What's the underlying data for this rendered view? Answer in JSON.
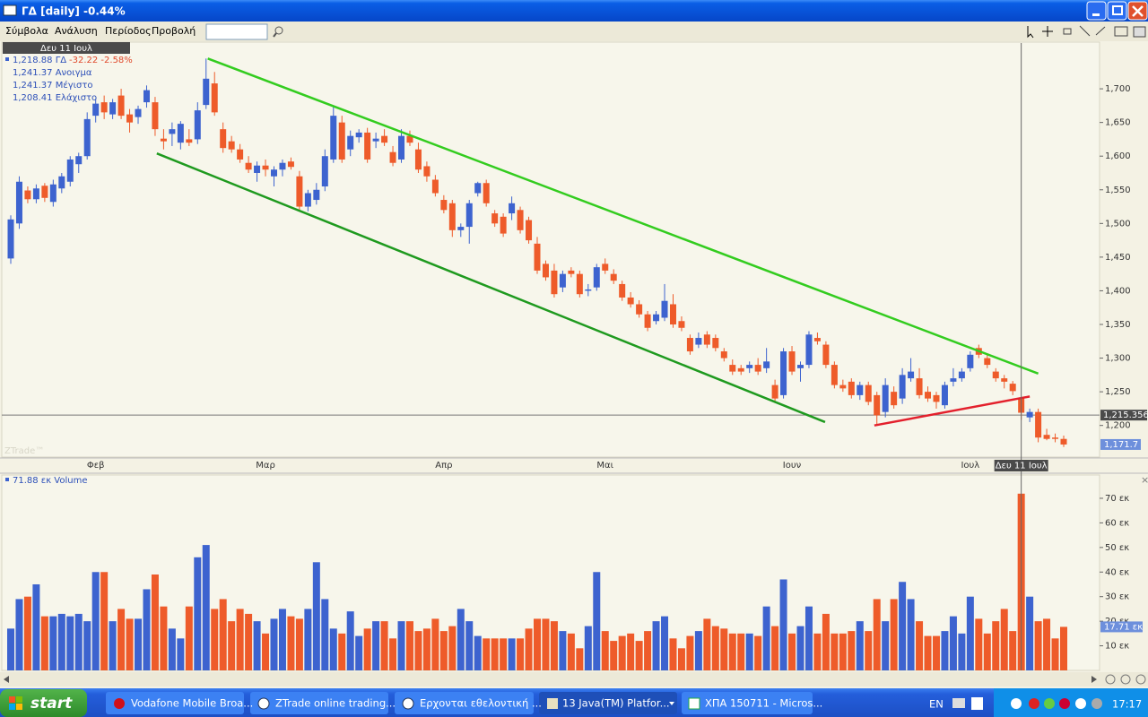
{
  "window": {
    "title": "ΓΔ [daily] -0.44%"
  },
  "menu": [
    "Σύμβολα",
    "Ανάλυση",
    "Περίοδος",
    "Προβολή"
  ],
  "info": {
    "date": "Δευ 11 Ιουλ",
    "price": "1,218.88 ΓΔ",
    "change": "-32.22 -2.58%",
    "rows": [
      "1,241.37 Ανοιγμα",
      "1,241.37 Μέγιστο",
      "1,208.41 Ελάχιστο"
    ],
    "watermark": "ZTrade™"
  },
  "chart_data": {
    "type": "candlestick",
    "categories": [
      null,
      null,
      null,
      null,
      null,
      null,
      null,
      null,
      null,
      null,
      "Φεβ",
      null,
      null,
      null,
      null,
      null,
      null,
      null,
      null,
      null,
      null,
      null,
      null,
      null,
      null,
      null,
      null,
      null,
      null,
      null,
      "Μαρ",
      null,
      null,
      null,
      null,
      null,
      null,
      null,
      null,
      null,
      null,
      null,
      null,
      null,
      null,
      null,
      null,
      null,
      null,
      null,
      null,
      "Απρ",
      null,
      null,
      null,
      null,
      null,
      null,
      null,
      null,
      null,
      null,
      null,
      null,
      null,
      null,
      null,
      null,
      null,
      null,
      "Μαι",
      null,
      null,
      null,
      null,
      null,
      null,
      null,
      null,
      null,
      null,
      null,
      null,
      null,
      null,
      null,
      null,
      null,
      null,
      null,
      null,
      null,
      "Ιουν",
      null,
      null,
      null,
      null,
      null,
      null,
      null,
      null,
      null,
      null,
      null,
      null,
      null,
      null,
      null,
      null,
      null,
      null,
      null,
      null,
      "Ιουλ",
      null,
      null,
      null,
      null,
      null,
      null,
      null,
      null,
      null,
      null,
      null
    ],
    "open": [
      1448,
      1500,
      1549,
      1536,
      1556,
      1532,
      1552,
      1562,
      1588,
      1600,
      1660,
      1680,
      1662,
      1690,
      1662,
      1658,
      1680,
      1680,
      1626,
      1633,
      1620,
      1625,
      1625,
      1676,
      1708,
      1640,
      1622,
      1610,
      1590,
      1575,
      1586,
      1570,
      1580,
      1592,
      1570,
      1525,
      1535,
      1555,
      1595,
      1650,
      1610,
      1628,
      1635,
      1622,
      1630,
      1606,
      1595,
      1630,
      1610,
      1585,
      1565,
      1535,
      1530,
      1490,
      1495,
      1545,
      1560,
      1515,
      1510,
      1515,
      1520,
      1505,
      1470,
      1440,
      1430,
      1405,
      1430,
      1425,
      1400,
      1405,
      1440,
      1425,
      1410,
      1390,
      1380,
      1365,
      1355,
      1360,
      1380,
      1355,
      1330,
      1320,
      1335,
      1330,
      1310,
      1290,
      1285,
      1285,
      1290,
      1285,
      1260,
      1245,
      1310,
      1285,
      1290,
      1330,
      1320,
      1290,
      1260,
      1265,
      1245,
      1260,
      1245,
      1220,
      1250,
      1240,
      1270,
      1270,
      1250,
      1245,
      1230,
      1265,
      1270,
      1285,
      1315,
      1300,
      1280,
      1270,
      1262,
      1241.37,
      1212,
      1220,
      1186,
      1182,
      1180
    ],
    "high": [
      1512,
      1570,
      1555,
      1558,
      1560,
      1565,
      1575,
      1600,
      1605,
      1665,
      1685,
      1690,
      1685,
      1700,
      1670,
      1675,
      1705,
      1688,
      1640,
      1650,
      1652,
      1640,
      1680,
      1745,
      1725,
      1650,
      1630,
      1618,
      1600,
      1592,
      1595,
      1585,
      1595,
      1598,
      1578,
      1550,
      1560,
      1610,
      1675,
      1660,
      1638,
      1640,
      1642,
      1635,
      1640,
      1615,
      1640,
      1638,
      1620,
      1592,
      1572,
      1542,
      1535,
      1500,
      1535,
      1562,
      1565,
      1520,
      1515,
      1540,
      1525,
      1510,
      1480,
      1445,
      1440,
      1430,
      1435,
      1430,
      1410,
      1440,
      1448,
      1432,
      1415,
      1398,
      1386,
      1370,
      1370,
      1410,
      1395,
      1362,
      1335,
      1338,
      1340,
      1335,
      1315,
      1298,
      1290,
      1295,
      1300,
      1315,
      1268,
      1315,
      1318,
      1295,
      1340,
      1338,
      1325,
      1295,
      1268,
      1270,
      1265,
      1265,
      1250,
      1270,
      1258,
      1285,
      1300,
      1285,
      1258,
      1250,
      1265,
      1285,
      1285,
      1310,
      1320,
      1305,
      1285,
      1275,
      1266,
      1241.37,
      1225,
      1225,
      1195,
      1188,
      1185
    ],
    "low": [
      1440,
      1492,
      1530,
      1530,
      1532,
      1525,
      1545,
      1555,
      1575,
      1595,
      1650,
      1655,
      1655,
      1655,
      1635,
      1648,
      1672,
      1630,
      1610,
      1615,
      1610,
      1615,
      1618,
      1670,
      1660,
      1605,
      1605,
      1590,
      1575,
      1562,
      1570,
      1555,
      1570,
      1580,
      1520,
      1518,
      1528,
      1548,
      1590,
      1590,
      1600,
      1620,
      1590,
      1612,
      1615,
      1585,
      1590,
      1615,
      1575,
      1562,
      1540,
      1515,
      1480,
      1480,
      1470,
      1540,
      1525,
      1495,
      1480,
      1505,
      1485,
      1470,
      1425,
      1415,
      1390,
      1398,
      1420,
      1390,
      1392,
      1400,
      1425,
      1410,
      1385,
      1375,
      1360,
      1340,
      1350,
      1355,
      1345,
      1340,
      1305,
      1315,
      1315,
      1310,
      1295,
      1275,
      1275,
      1278,
      1275,
      1278,
      1235,
      1240,
      1275,
      1265,
      1285,
      1320,
      1285,
      1255,
      1250,
      1240,
      1238,
      1230,
      1200,
      1212,
      1225,
      1232,
      1265,
      1240,
      1235,
      1225,
      1225,
      1258,
      1265,
      1280,
      1300,
      1285,
      1265,
      1255,
      1245,
      1208.41,
      1205,
      1175,
      1178,
      1175,
      1168
    ],
    "close": [
      1506,
      1562,
      1536,
      1552,
      1538,
      1558,
      1570,
      1595,
      1600,
      1655,
      1678,
      1665,
      1680,
      1660,
      1650,
      1670,
      1698,
      1640,
      1622,
      1640,
      1648,
      1620,
      1668,
      1715,
      1665,
      1612,
      1610,
      1595,
      1580,
      1586,
      1580,
      1580,
      1590,
      1584,
      1525,
      1545,
      1550,
      1600,
      1660,
      1595,
      1630,
      1635,
      1595,
      1626,
      1620,
      1590,
      1630,
      1620,
      1580,
      1570,
      1545,
      1520,
      1490,
      1495,
      1530,
      1560,
      1530,
      1500,
      1485,
      1530,
      1490,
      1475,
      1430,
      1420,
      1395,
      1425,
      1425,
      1395,
      1402,
      1435,
      1430,
      1415,
      1390,
      1380,
      1365,
      1345,
      1365,
      1385,
      1350,
      1345,
      1310,
      1330,
      1320,
      1315,
      1300,
      1280,
      1280,
      1290,
      1280,
      1295,
      1240,
      1310,
      1280,
      1290,
      1335,
      1325,
      1290,
      1260,
      1255,
      1245,
      1260,
      1235,
      1215,
      1260,
      1230,
      1275,
      1280,
      1245,
      1240,
      1235,
      1260,
      1270,
      1280,
      1305,
      1305,
      1290,
      1270,
      1265,
      1251,
      1218.88,
      1220,
      1182,
      1180,
      1180,
      1171.7
    ],
    "up_color": "#3d63cf",
    "down_color": "#ee5b2a",
    "ylim": [
      1153,
      1768
    ],
    "yticks": [
      {
        "value": 1200,
        "label": "1,200"
      },
      {
        "value": 1250,
        "label": "1,250"
      },
      {
        "value": 1300,
        "label": "1,300"
      },
      {
        "value": 1350,
        "label": "1,350"
      },
      {
        "value": 1400,
        "label": "1,400"
      },
      {
        "value": 1450,
        "label": "1,450"
      },
      {
        "value": 1500,
        "label": "1,500"
      },
      {
        "value": 1550,
        "label": "1,550"
      },
      {
        "value": 1600,
        "label": "1,600"
      },
      {
        "value": 1650,
        "label": "1,650"
      },
      {
        "value": 1700,
        "label": "1,700"
      }
    ],
    "level": {
      "value": 1215.356,
      "label": "1,215.356"
    },
    "last": {
      "value": 1171.7,
      "label": "1,171.7"
    },
    "crosshair": {
      "x": 119,
      "label": "Δευ 11 Ιουλ"
    },
    "trendlines": [
      {
        "color": "#33cc1f",
        "from": [
          23.2,
          1745
        ],
        "to": [
          121,
          1277
        ]
      },
      {
        "color": "#1f9a1f",
        "from": [
          17.2,
          1604
        ],
        "to": [
          95.9,
          1205
        ]
      },
      {
        "color": "#e3202c",
        "from": [
          101.7,
          1200
        ],
        "to": [
          120,
          1243
        ]
      }
    ],
    "volume": {
      "title": "71.88 εκ Volume",
      "values": [
        17,
        29,
        30,
        35,
        22,
        22,
        23,
        22,
        23,
        20,
        40,
        40,
        20,
        25,
        21,
        21,
        33,
        39,
        26,
        17,
        13,
        26,
        46,
        51,
        25,
        29,
        20,
        25,
        23,
        20,
        15,
        21,
        25,
        22,
        21,
        25,
        44,
        29,
        17,
        15,
        24,
        14,
        17,
        20,
        20,
        13,
        20,
        20,
        16,
        17,
        21,
        16,
        18,
        25,
        20,
        14,
        13,
        13,
        13,
        13,
        13,
        17,
        21,
        21,
        20,
        16,
        15,
        9,
        18,
        40,
        16,
        12,
        14,
        15,
        12,
        16,
        20,
        22,
        13,
        9,
        14,
        16,
        21,
        18,
        17,
        15,
        15,
        15,
        14,
        26,
        18,
        37,
        15,
        18,
        26,
        15,
        23,
        15,
        15,
        16,
        20,
        16,
        29,
        20,
        29,
        36,
        29,
        20,
        14,
        14,
        16,
        22,
        15,
        30,
        21,
        15,
        20,
        25,
        16,
        71.88,
        30,
        20,
        21,
        13,
        17.71
      ],
      "ylim": [
        0,
        74
      ],
      "yticks": [
        {
          "value": 10,
          "label": "10 εκ"
        },
        {
          "value": 20,
          "label": "20 εκ"
        },
        {
          "value": 30,
          "label": "30 εκ"
        },
        {
          "value": 40,
          "label": "40 εκ"
        },
        {
          "value": 50,
          "label": "50 εκ"
        },
        {
          "value": 60,
          "label": "60 εκ"
        },
        {
          "value": 70,
          "label": "70 εκ"
        }
      ],
      "last": {
        "value": 17.71,
        "label": "17.71 εκ"
      }
    }
  },
  "taskbar": {
    "start": "start",
    "tasks": [
      "Vodafone Mobile Broa...",
      "ZTrade online trading...",
      "Ερχονται εθελοντική ...",
      "13 Java(TM) Platfor...",
      "ΧΠΑ 150711 - Micros..."
    ],
    "language": "EN",
    "clock": "17:17"
  }
}
